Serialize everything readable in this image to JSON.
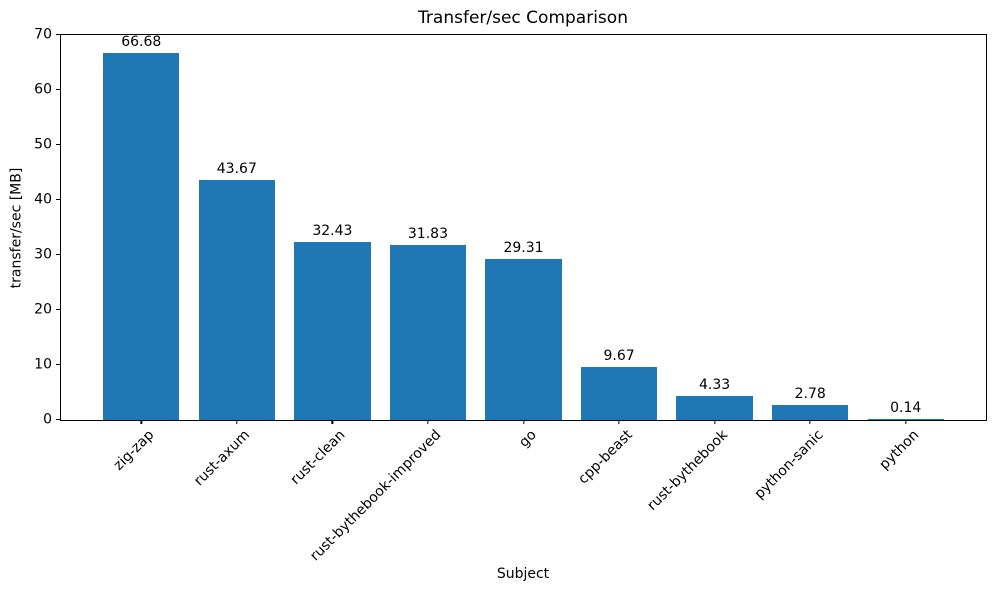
{
  "chart_data": {
    "type": "bar",
    "title": "Transfer/sec Comparison",
    "xlabel": "Subject",
    "ylabel": "transfer/sec [MB]",
    "categories": [
      "zig-zap",
      "rust-axum",
      "rust-clean",
      "rust-bythebook-improved",
      "go",
      "cpp-beast",
      "rust-bythebook",
      "python-sanic",
      "python"
    ],
    "values": [
      66.68,
      43.67,
      32.43,
      31.83,
      29.31,
      9.67,
      4.33,
      2.78,
      0.14
    ],
    "value_labels": [
      "66.68",
      "43.67",
      "32.43",
      "31.83",
      "29.31",
      "9.67",
      "4.33",
      "2.78",
      "0.14"
    ],
    "ylim": [
      0,
      70
    ],
    "yticks": [
      0,
      10,
      20,
      30,
      40,
      50,
      60,
      70
    ],
    "bar_color": "#1f77b4",
    "axis_color": "#000000",
    "grid": false,
    "x_tick_rotation_deg": 45,
    "legend_position": "none"
  }
}
